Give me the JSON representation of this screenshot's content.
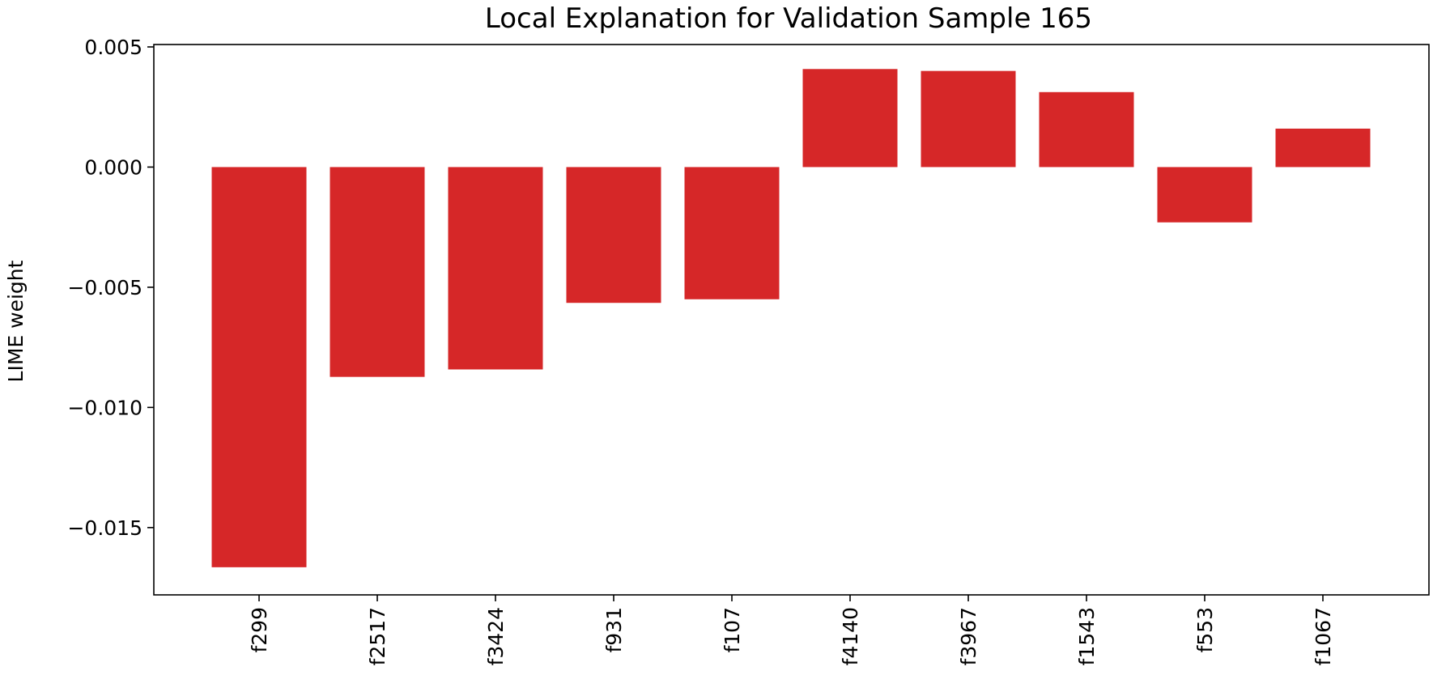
{
  "chart_data": {
    "type": "bar",
    "title": "Local Explanation for Validation Sample 165",
    "xlabel": "",
    "ylabel": "LIME weight",
    "categories": [
      "f299",
      "f2517",
      "f3424",
      "f931",
      "f107",
      "f4140",
      "f3967",
      "f1543",
      "f553",
      "f1067"
    ],
    "values": [
      -0.01665,
      -0.00873,
      -0.00842,
      -0.00565,
      -0.0055,
      0.00408,
      0.004,
      0.00312,
      -0.0023,
      0.0016
    ],
    "ylim": [
      -0.0178,
      0.0051
    ],
    "yticks": [
      0.005,
      0.0,
      -0.005,
      -0.01,
      -0.015
    ],
    "ytick_labels": [
      "0.005",
      "0.000",
      "−0.005",
      "−0.010",
      "−0.015"
    ],
    "bar_color": "#d62728",
    "grid": false,
    "legend": "none"
  }
}
